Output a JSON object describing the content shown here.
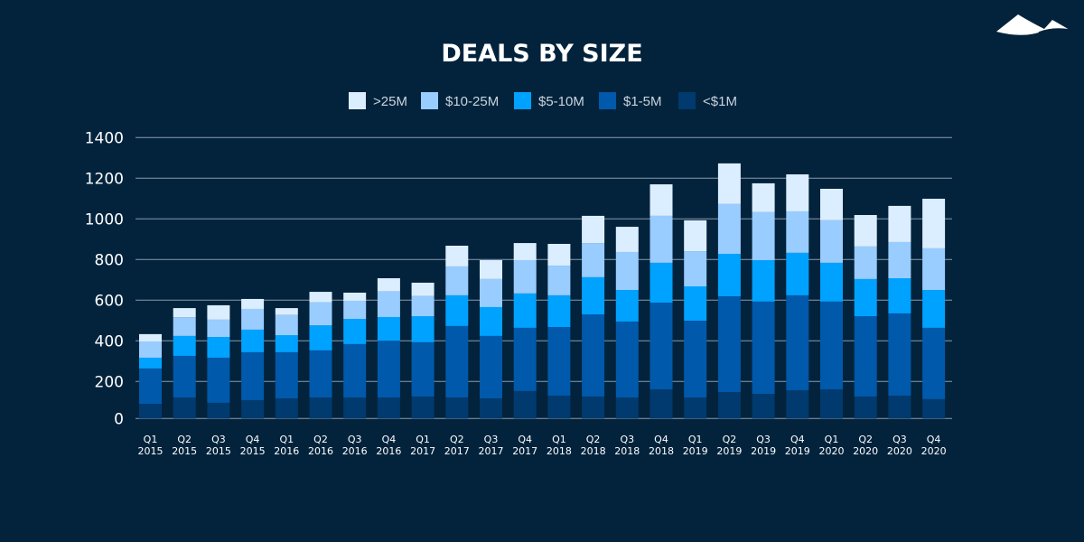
{
  "chart_data": {
    "type": "bar",
    "stacked": true,
    "title": "DEALS BY SIZE",
    "xlabel": "",
    "ylabel": "",
    "ylim": [
      0,
      1400
    ],
    "yticks": [
      0,
      200,
      400,
      600,
      800,
      1000,
      1200,
      1400
    ],
    "grid": true,
    "legend_position": "top-center",
    "categories": [
      [
        "Q1",
        "2015"
      ],
      [
        "Q2",
        "2015"
      ],
      [
        "Q3",
        "2015"
      ],
      [
        "Q4",
        "2015"
      ],
      [
        "Q1",
        "2016"
      ],
      [
        "Q2",
        "2016"
      ],
      [
        "Q3",
        "2016"
      ],
      [
        "Q4",
        "2016"
      ],
      [
        "Q1",
        "2017"
      ],
      [
        "Q2",
        "2017"
      ],
      [
        "Q3",
        "2017"
      ],
      [
        "Q4",
        "2017"
      ],
      [
        "Q1",
        "2018"
      ],
      [
        "Q2",
        "2018"
      ],
      [
        "Q3",
        "2018"
      ],
      [
        "Q4",
        "2018"
      ],
      [
        "Q1",
        "2019"
      ],
      [
        "Q2",
        "2019"
      ],
      [
        "Q3",
        "2019"
      ],
      [
        "Q4",
        "2019"
      ],
      [
        "Q1",
        "2020"
      ],
      [
        "Q2",
        "2020"
      ],
      [
        "Q3",
        "2020"
      ],
      [
        "Q4",
        "2020"
      ]
    ],
    "series": [
      {
        "name": "<$1M",
        "color": "#003a6e",
        "values": [
          90,
          121,
          95,
          108,
          117,
          121,
          121,
          121,
          126,
          121,
          117,
          153,
          130,
          126,
          121,
          161,
          121,
          148,
          139,
          157,
          161,
          126,
          130,
          113
        ]
      },
      {
        "name": "$1-5M",
        "color": "#0059aa",
        "values": [
          174,
          205,
          222,
          236,
          227,
          232,
          263,
          280,
          267,
          352,
          307,
          311,
          338,
          404,
          374,
          427,
          378,
          471,
          454,
          467,
          432,
          395,
          405,
          351
        ]
      },
      {
        "name": "$5-10M",
        "color": "#00a2ff",
        "values": [
          53,
          98,
          102,
          111,
          84,
          123,
          124,
          116,
          128,
          151,
          142,
          169,
          156,
          183,
          155,
          196,
          169,
          209,
          204,
          209,
          191,
          183,
          173,
          186
        ]
      },
      {
        "name": "$10-25M",
        "color": "#99ccff",
        "values": [
          80,
          92,
          85,
          102,
          99,
          114,
          89,
          126,
          100,
          142,
          138,
          164,
          146,
          168,
          187,
          231,
          173,
          245,
          236,
          204,
          209,
          160,
          178,
          205
        ]
      },
      {
        "name": ">25M",
        "color": "#dbeeff",
        "values": [
          36,
          45,
          71,
          49,
          34,
          51,
          40,
          65,
          65,
          102,
          93,
          84,
          107,
          134,
          124,
          155,
          152,
          200,
          142,
          182,
          155,
          155,
          178,
          244
        ]
      }
    ],
    "legend_order": [
      ">25M",
      "$10-25M",
      "$5-10M",
      "$1-5M",
      "<$1M"
    ]
  },
  "logo": {
    "icon": "mountain-logo-icon"
  },
  "colors": {
    "background": "#03233c",
    "grid": "#8a9aab"
  }
}
